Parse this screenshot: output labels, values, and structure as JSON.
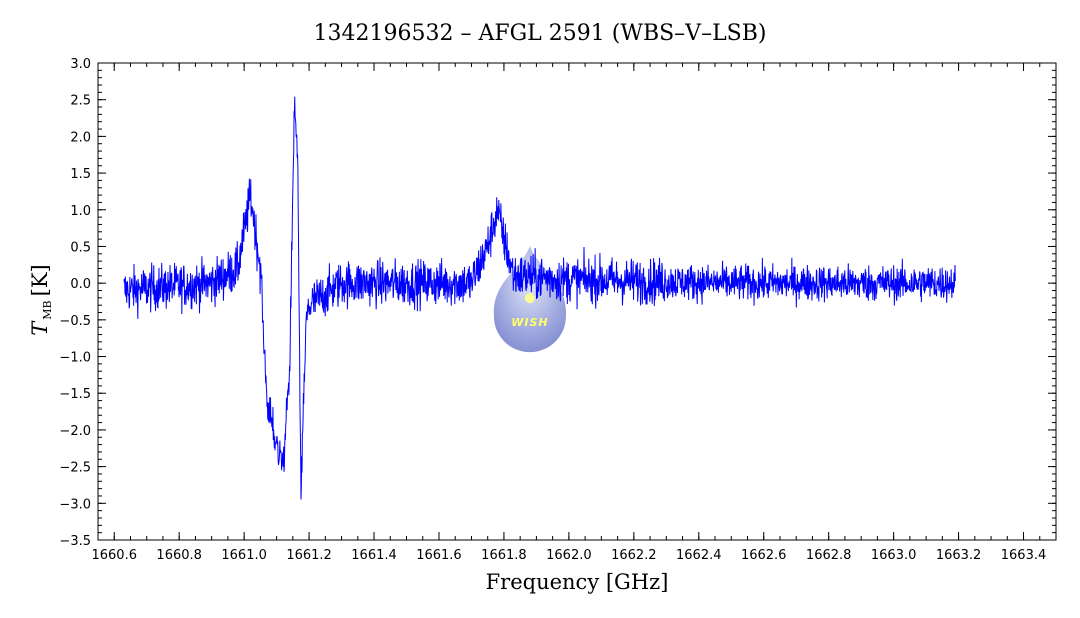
{
  "chart_data": {
    "type": "line",
    "title": "1342196532 – AFGL 2591 (WBS–V–LSB)",
    "xlabel": "Frequency [GHz]",
    "ylabel_main": "T",
    "ylabel_sub": "MB",
    "ylabel_unit": "[K]",
    "xlim": [
      1660.55,
      1663.5
    ],
    "ylim": [
      -3.5,
      3.0
    ],
    "x_ticks": [
      "1660.6",
      "1660.8",
      "1661.0",
      "1661.2",
      "1661.4",
      "1661.6",
      "1661.8",
      "1662.0",
      "1662.2",
      "1662.4",
      "1662.6",
      "1662.8",
      "1663.0",
      "1663.2",
      "1663.4"
    ],
    "y_ticks": [
      "3.0",
      "2.5",
      "2.0",
      "1.5",
      "1.0",
      "0.5",
      "0.0",
      "-0.5",
      "-1.0",
      "-1.5",
      "-2.0",
      "-2.5",
      "-3.0",
      "-3.5"
    ],
    "grid": false,
    "series": [
      {
        "color": "#0000ff",
        "x_range": [
          1660.63,
          1663.19
        ],
        "noise_rms": 0.22,
        "features": [
          {
            "x": 1660.63,
            "y": -0.1
          },
          {
            "x": 1660.9,
            "y": 0.0
          },
          {
            "x": 1660.98,
            "y": 0.2
          },
          {
            "x": 1661.02,
            "y": 1.2
          },
          {
            "x": 1661.05,
            "y": 0.2
          },
          {
            "x": 1661.07,
            "y": -1.6
          },
          {
            "x": 1661.1,
            "y": -2.2
          },
          {
            "x": 1661.12,
            "y": -2.5
          },
          {
            "x": 1661.14,
            "y": -1.2
          },
          {
            "x": 1661.155,
            "y": 2.5
          },
          {
            "x": 1661.165,
            "y": 1.6
          },
          {
            "x": 1661.175,
            "y": -2.9
          },
          {
            "x": 1661.19,
            "y": -0.6
          },
          {
            "x": 1661.2,
            "y": -0.3
          },
          {
            "x": 1661.3,
            "y": 0.0
          },
          {
            "x": 1661.7,
            "y": 0.0
          },
          {
            "x": 1661.75,
            "y": 0.5
          },
          {
            "x": 1661.78,
            "y": 1.0
          },
          {
            "x": 1661.8,
            "y": 0.6
          },
          {
            "x": 1661.83,
            "y": 0.1
          },
          {
            "x": 1662.0,
            "y": 0.05
          },
          {
            "x": 1662.5,
            "y": 0.0
          },
          {
            "x": 1663.19,
            "y": 0.0
          }
        ]
      }
    ],
    "logo": {
      "text": "WISH",
      "x": 1661.88,
      "y": -0.45
    }
  }
}
